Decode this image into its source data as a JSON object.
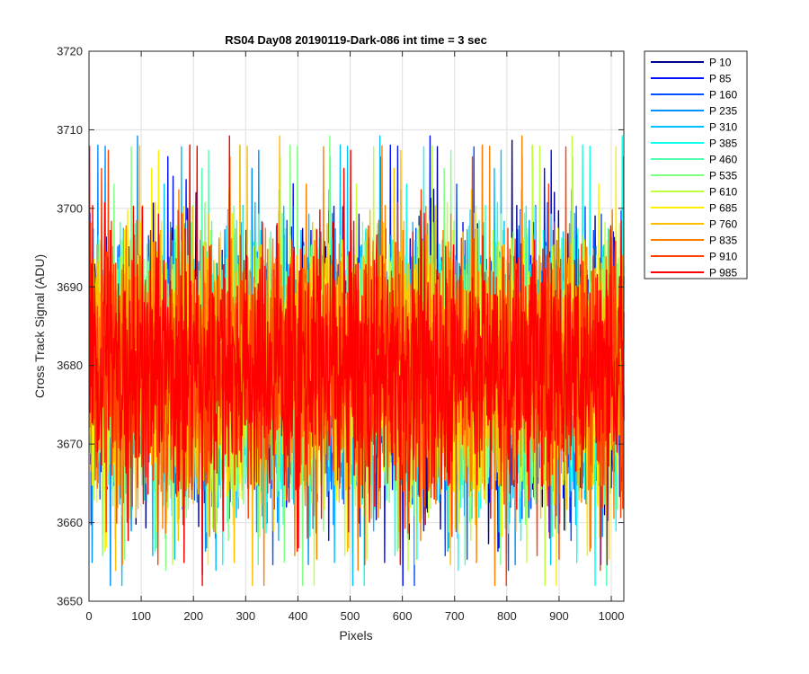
{
  "chart_data": {
    "type": "line",
    "title": "RS04 Day08 20190119-Dark-086 int time = 3 sec",
    "xlabel": "Pixels",
    "ylabel": "Cross Track Signal (ADU)",
    "xlim": [
      0,
      1024
    ],
    "ylim": [
      3650,
      3720
    ],
    "xticks": [
      0,
      100,
      200,
      300,
      400,
      500,
      600,
      700,
      800,
      900,
      1000
    ],
    "yticks": [
      3650,
      3660,
      3670,
      3680,
      3690,
      3700,
      3710,
      3720
    ],
    "grid": true,
    "legend_position": "outside-right",
    "series_summary": {
      "num_points": 1024,
      "mean": 3680,
      "typical_range": [
        3665,
        3697
      ],
      "observed_min": 3652,
      "observed_max": 3713
    },
    "series": [
      {
        "name": "P 10",
        "color": "#00008f"
      },
      {
        "name": "P 85",
        "color": "#0010ff"
      },
      {
        "name": "P 160",
        "color": "#0050ff"
      },
      {
        "name": "P 235",
        "color": "#0090ff"
      },
      {
        "name": "P 310",
        "color": "#00c0ff"
      },
      {
        "name": "P 385",
        "color": "#10ffef"
      },
      {
        "name": "P 460",
        "color": "#50ffaf"
      },
      {
        "name": "P 535",
        "color": "#80ff80"
      },
      {
        "name": "P 610",
        "color": "#c0ff40"
      },
      {
        "name": "P 685",
        "color": "#ffef00"
      },
      {
        "name": "P 760",
        "color": "#ffbf00"
      },
      {
        "name": "P 835",
        "color": "#ff8000"
      },
      {
        "name": "P 910",
        "color": "#ff4000"
      },
      {
        "name": "P 985",
        "color": "#ff0000"
      }
    ]
  }
}
